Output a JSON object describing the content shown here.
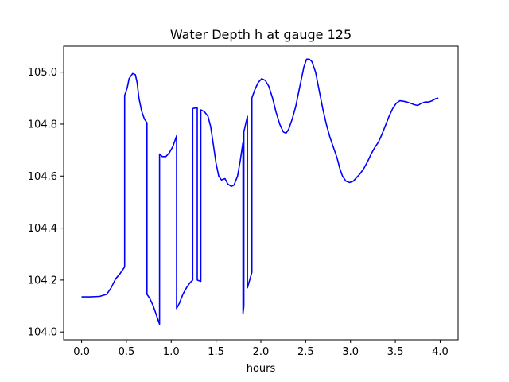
{
  "chart_data": {
    "type": "line",
    "title": "Water Depth h at gauge 125",
    "xlabel": "hours",
    "ylabel": "",
    "xlim": [
      -0.2,
      4.2
    ],
    "ylim": [
      103.97,
      105.1
    ],
    "x_ticks": [
      "0.0",
      "0.5",
      "1.0",
      "1.5",
      "2.0",
      "2.5",
      "3.0",
      "3.5",
      "4.0"
    ],
    "y_ticks": [
      "104.0",
      "104.2",
      "104.4",
      "104.6",
      "104.8",
      "105.0"
    ],
    "grid": false,
    "series": [
      {
        "color": "#0000ff",
        "points": [
          [
            0.0,
            104.135
          ],
          [
            0.1,
            104.135
          ],
          [
            0.2,
            104.137
          ],
          [
            0.28,
            104.145
          ],
          [
            0.33,
            104.17
          ],
          [
            0.38,
            104.205
          ],
          [
            0.43,
            104.225
          ],
          [
            0.48,
            104.25
          ],
          [
            0.48,
            104.91
          ],
          [
            0.51,
            104.94
          ],
          [
            0.53,
            104.975
          ],
          [
            0.57,
            104.995
          ],
          [
            0.6,
            104.99
          ],
          [
            0.62,
            104.96
          ],
          [
            0.64,
            104.9
          ],
          [
            0.67,
            104.85
          ],
          [
            0.7,
            104.82
          ],
          [
            0.73,
            104.805
          ],
          [
            0.73,
            104.145
          ],
          [
            0.76,
            104.13
          ],
          [
            0.8,
            104.1
          ],
          [
            0.84,
            104.06
          ],
          [
            0.87,
            104.03
          ],
          [
            0.87,
            104.685
          ],
          [
            0.9,
            104.675
          ],
          [
            0.94,
            104.675
          ],
          [
            0.98,
            104.69
          ],
          [
            1.02,
            104.715
          ],
          [
            1.06,
            104.755
          ],
          [
            1.06,
            104.09
          ],
          [
            1.09,
            104.11
          ],
          [
            1.13,
            104.145
          ],
          [
            1.17,
            104.17
          ],
          [
            1.21,
            104.19
          ],
          [
            1.24,
            104.2
          ],
          [
            1.24,
            104.86
          ],
          [
            1.27,
            104.862
          ],
          [
            1.29,
            104.862
          ],
          [
            1.29,
            104.2
          ],
          [
            1.33,
            104.195
          ],
          [
            1.33,
            104.855
          ],
          [
            1.37,
            104.848
          ],
          [
            1.41,
            104.83
          ],
          [
            1.44,
            104.79
          ],
          [
            1.47,
            104.72
          ],
          [
            1.5,
            104.65
          ],
          [
            1.53,
            104.6
          ],
          [
            1.56,
            104.585
          ],
          [
            1.6,
            104.59
          ],
          [
            1.63,
            104.57
          ],
          [
            1.67,
            104.56
          ],
          [
            1.7,
            104.565
          ],
          [
            1.74,
            104.6
          ],
          [
            1.77,
            104.66
          ],
          [
            1.8,
            104.73
          ],
          [
            1.8,
            104.07
          ],
          [
            1.81,
            104.1
          ],
          [
            1.81,
            104.77
          ],
          [
            1.83,
            104.8
          ],
          [
            1.85,
            104.83
          ],
          [
            1.85,
            104.17
          ],
          [
            1.9,
            104.23
          ],
          [
            1.9,
            104.9
          ],
          [
            1.93,
            104.93
          ],
          [
            1.97,
            104.96
          ],
          [
            2.01,
            104.975
          ],
          [
            2.05,
            104.968
          ],
          [
            2.09,
            104.945
          ],
          [
            2.13,
            104.9
          ],
          [
            2.17,
            104.845
          ],
          [
            2.21,
            104.8
          ],
          [
            2.25,
            104.77
          ],
          [
            2.28,
            104.765
          ],
          [
            2.31,
            104.78
          ],
          [
            2.35,
            104.82
          ],
          [
            2.39,
            104.87
          ],
          [
            2.42,
            104.92
          ],
          [
            2.45,
            104.97
          ],
          [
            2.48,
            105.02
          ],
          [
            2.51,
            105.05
          ],
          [
            2.54,
            105.05
          ],
          [
            2.57,
            105.04
          ],
          [
            2.61,
            105.0
          ],
          [
            2.65,
            104.93
          ],
          [
            2.69,
            104.86
          ],
          [
            2.73,
            104.8
          ],
          [
            2.77,
            104.75
          ],
          [
            2.81,
            104.71
          ],
          [
            2.85,
            104.67
          ],
          [
            2.88,
            104.63
          ],
          [
            2.91,
            104.6
          ],
          [
            2.95,
            104.58
          ],
          [
            2.99,
            104.575
          ],
          [
            3.03,
            104.58
          ],
          [
            3.07,
            104.595
          ],
          [
            3.11,
            104.61
          ],
          [
            3.15,
            104.63
          ],
          [
            3.19,
            104.655
          ],
          [
            3.23,
            104.685
          ],
          [
            3.27,
            104.71
          ],
          [
            3.31,
            104.73
          ],
          [
            3.35,
            104.76
          ],
          [
            3.39,
            104.795
          ],
          [
            3.43,
            104.83
          ],
          [
            3.47,
            104.86
          ],
          [
            3.51,
            104.88
          ],
          [
            3.55,
            104.89
          ],
          [
            3.59,
            104.888
          ],
          [
            3.63,
            104.885
          ],
          [
            3.67,
            104.88
          ],
          [
            3.71,
            104.875
          ],
          [
            3.75,
            104.872
          ],
          [
            3.79,
            104.88
          ],
          [
            3.83,
            104.885
          ],
          [
            3.87,
            104.885
          ],
          [
            3.91,
            104.89
          ],
          [
            3.95,
            104.898
          ],
          [
            3.98,
            104.9
          ]
        ]
      }
    ]
  }
}
